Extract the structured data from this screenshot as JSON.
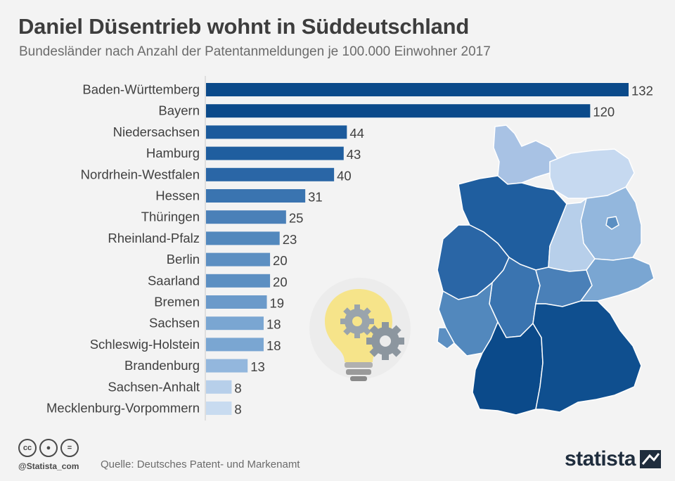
{
  "header": {
    "title": "Daniel Düsentrieb wohnt in Süddeutschland",
    "subtitle": "Bundesländer nach Anzahl der Patentanmeldungen je 100.000 Einwohner 2017"
  },
  "chart_data": {
    "type": "bar",
    "orientation": "horizontal",
    "title": "Daniel Düsentrieb wohnt in Süddeutschland",
    "subtitle": "Bundesländer nach Anzahl der Patentanmeldungen je 100.000 Einwohner 2017",
    "categories": [
      "Baden-Württemberg",
      "Bayern",
      "Niedersachsen",
      "Hamburg",
      "Nordrhein-Westfalen",
      "Hessen",
      "Thüringen",
      "Rheinland-Pfalz",
      "Berlin",
      "Saarland",
      "Bremen",
      "Sachsen",
      "Schleswig-Holstein",
      "Brandenburg",
      "Sachsen-Anhalt",
      "Mecklenburg-Vorpommern"
    ],
    "values": [
      132,
      120,
      44,
      43,
      40,
      31,
      25,
      23,
      20,
      20,
      19,
      18,
      18,
      13,
      8,
      8
    ],
    "colors": [
      "#0b4a8a",
      "#0b4a8a",
      "#1b5a9c",
      "#1f5e9f",
      "#2a66a6",
      "#3a74b0",
      "#4a80b8",
      "#5288bd",
      "#5c8fc2",
      "#5c8fc2",
      "#6b9aca",
      "#7aa6d2",
      "#7aa6d2",
      "#93b7dd",
      "#b7cfea",
      "#c8dbf0"
    ],
    "xlim": [
      0,
      132
    ],
    "grid": false
  },
  "footer": {
    "source": "Quelle: Deutsches Patent- und Markenamt",
    "handle": "@Statista_com",
    "cc_icons": [
      "cc-icon",
      "by-icon",
      "nd-icon"
    ],
    "logo": "statista"
  }
}
